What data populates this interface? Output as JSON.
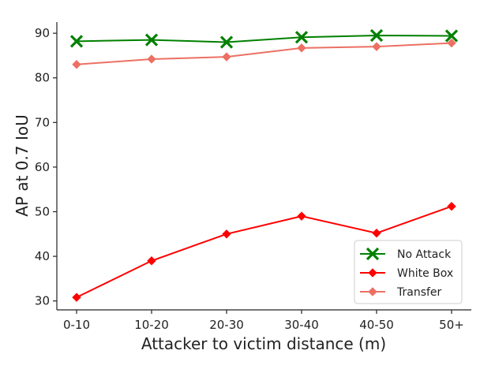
{
  "chart_data": {
    "type": "line",
    "xlabel": "Attacker to victim distance (m)",
    "ylabel": "AP at 0.7 IoU",
    "categories": [
      "0-10",
      "10-20",
      "20-30",
      "30-40",
      "40-50",
      "50+"
    ],
    "ylim": [
      28,
      92.5
    ],
    "yticks": [
      30,
      40,
      50,
      60,
      70,
      80,
      90
    ],
    "grid": false,
    "legend_position": "lower-right",
    "series": [
      {
        "name": "No Attack",
        "color": "#008000",
        "marker": "x",
        "values": [
          88.2,
          88.5,
          88.0,
          89.1,
          89.5,
          89.4
        ]
      },
      {
        "name": "White Box",
        "color": "#ff0000",
        "marker": "diamond",
        "values": [
          30.8,
          39.0,
          45.0,
          49.0,
          45.2,
          51.2
        ]
      },
      {
        "name": "Transfer",
        "color": "#ec7063",
        "marker": "diamond",
        "values": [
          83.0,
          84.2,
          84.7,
          86.7,
          87.0,
          87.8
        ]
      }
    ]
  }
}
